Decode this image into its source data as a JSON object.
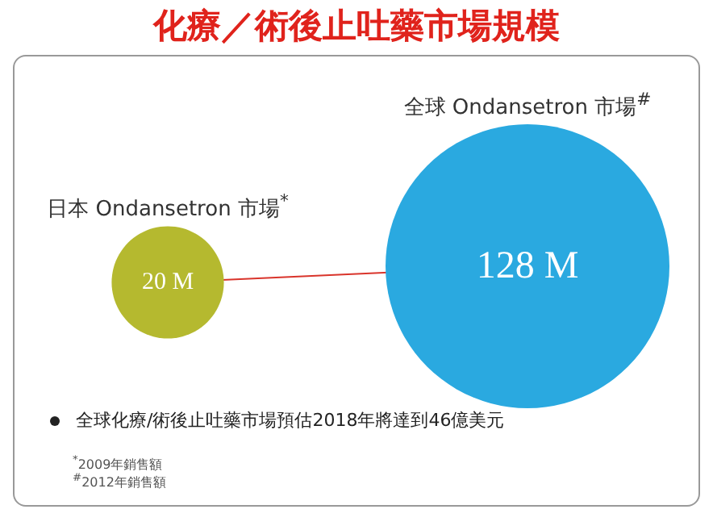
{
  "chart_data": {
    "type": "other",
    "title": "化療／術後止吐藥市場規模",
    "categories": [
      "日本 Ondansetron 市場$^{*}$",
      "全球 Ondansetron 市場$^{#}$"
    ],
    "values": [
      20,
      128
    ],
    "value_labels": [
      "20 M",
      "128 M"
    ],
    "colors": [
      "#b5b92f",
      "#2aa9e0"
    ],
    "annotations": [
      "全球化療/術後止吐藥市場預估2018年將達到46億美元",
      "$^{*}$2009年銷售額",
      "$^{#}$2012年銷售額"
    ]
  }
}
